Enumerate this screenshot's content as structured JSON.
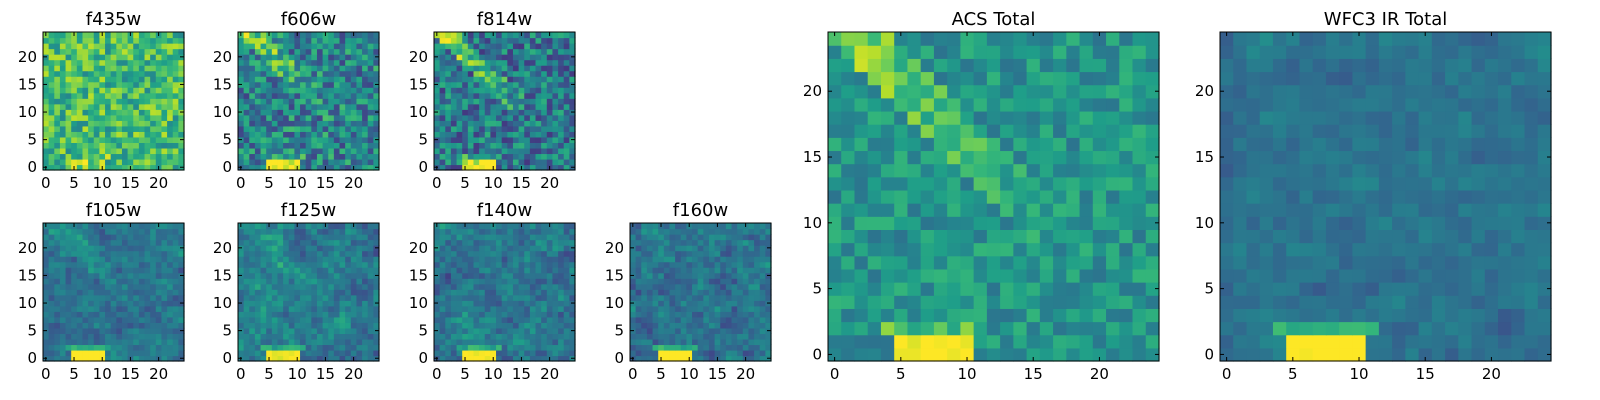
{
  "figure": {
    "description": "Image cutouts of a galaxy in HST ACS and WFC3-IR filters"
  },
  "chart_data": [
    {
      "type": "heatmap",
      "title": "f435w",
      "xlim": [
        0,
        24
      ],
      "ylim": [
        0,
        24
      ],
      "xticks": [
        0,
        5,
        10,
        15,
        20
      ],
      "yticks": [
        0,
        5,
        10,
        15,
        20
      ],
      "seed": 11,
      "mean": 0.68,
      "noise": 0.22,
      "diagonal": 0.0,
      "blob": 0.15,
      "smooth": false
    },
    {
      "type": "heatmap",
      "title": "f606w",
      "xlim": [
        0,
        24
      ],
      "ylim": [
        0,
        24
      ],
      "xticks": [
        0,
        5,
        10,
        15,
        20
      ],
      "yticks": [
        0,
        5,
        10,
        15,
        20
      ],
      "seed": 23,
      "mean": 0.45,
      "noise": 0.25,
      "diagonal": 0.35,
      "blob": 0.6,
      "smooth": false
    },
    {
      "type": "heatmap",
      "title": "f814w",
      "xlim": [
        0,
        24
      ],
      "ylim": [
        0,
        24
      ],
      "xticks": [
        0,
        5,
        10,
        15,
        20
      ],
      "yticks": [
        0,
        5,
        10,
        15,
        20
      ],
      "seed": 37,
      "mean": 0.4,
      "noise": 0.24,
      "diagonal": 0.45,
      "blob": 0.65,
      "smooth": false
    },
    {
      "type": "heatmap",
      "title": "f105w",
      "xlim": [
        0,
        24
      ],
      "ylim": [
        0,
        24
      ],
      "xticks": [
        0,
        5,
        10,
        15,
        20
      ],
      "yticks": [
        0,
        5,
        10,
        15,
        20
      ],
      "seed": 41,
      "mean": 0.38,
      "noise": 0.18,
      "diagonal": 0.2,
      "blob": 0.7,
      "smooth": true
    },
    {
      "type": "heatmap",
      "title": "f125w",
      "xlim": [
        0,
        24
      ],
      "ylim": [
        0,
        24
      ],
      "xticks": [
        0,
        5,
        10,
        15,
        20
      ],
      "yticks": [
        0,
        5,
        10,
        15,
        20
      ],
      "seed": 53,
      "mean": 0.42,
      "noise": 0.22,
      "diagonal": 0.1,
      "blob": 0.65,
      "smooth": true
    },
    {
      "type": "heatmap",
      "title": "f140w",
      "xlim": [
        0,
        24
      ],
      "ylim": [
        0,
        24
      ],
      "xticks": [
        0,
        5,
        10,
        15,
        20
      ],
      "yticks": [
        0,
        5,
        10,
        15,
        20
      ],
      "seed": 67,
      "mean": 0.4,
      "noise": 0.22,
      "diagonal": 0.05,
      "blob": 0.7,
      "smooth": true
    },
    {
      "type": "heatmap",
      "title": "f160w",
      "xlim": [
        0,
        24
      ],
      "ylim": [
        0,
        24
      ],
      "xticks": [
        0,
        5,
        10,
        15,
        20
      ],
      "yticks": [
        0,
        5,
        10,
        15,
        20
      ],
      "seed": 79,
      "mean": 0.38,
      "noise": 0.2,
      "diagonal": 0.05,
      "blob": 0.75,
      "smooth": true
    },
    {
      "type": "heatmap",
      "title": "ACS Total",
      "xlim": [
        0,
        24
      ],
      "ylim": [
        0,
        24
      ],
      "xticks": [
        0,
        5,
        10,
        15,
        20
      ],
      "yticks": [
        0,
        5,
        10,
        15,
        20
      ],
      "seed": 97,
      "mean": 0.52,
      "noise": 0.14,
      "diagonal": 0.3,
      "blob": 0.55,
      "smooth": false
    },
    {
      "type": "heatmap",
      "title": "WFC3 IR Total",
      "xlim": [
        0,
        24
      ],
      "ylim": [
        0,
        24
      ],
      "xticks": [
        0,
        5,
        10,
        15,
        20
      ],
      "yticks": [
        0,
        5,
        10,
        15,
        20
      ],
      "seed": 113,
      "mean": 0.38,
      "noise": 0.12,
      "diagonal": 0.0,
      "blob": 0.7,
      "smooth": true
    }
  ]
}
